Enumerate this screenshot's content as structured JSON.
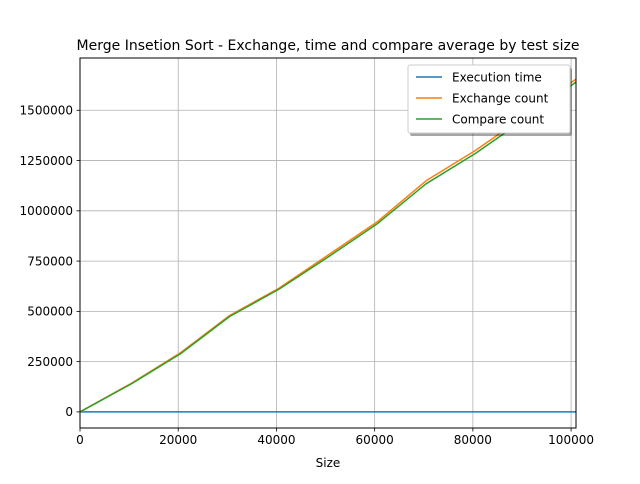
{
  "chart_data": {
    "type": "line",
    "title": "Merge Insetion Sort - Exchange, time and compare average by test size",
    "xlabel": "Size",
    "ylabel": "",
    "xlim": [
      0,
      101000
    ],
    "ylim": [
      -80000,
      1760000
    ],
    "xticks": [
      0,
      20000,
      40000,
      60000,
      80000,
      100000
    ],
    "yticks": [
      0,
      250000,
      500000,
      750000,
      1000000,
      1250000,
      1500000
    ],
    "xtick_labels": [
      "0",
      "20000",
      "40000",
      "60000",
      "80000",
      "100000"
    ],
    "ytick_labels": [
      "0",
      "250000",
      "500000",
      "750000",
      "1000000",
      "1250000",
      "1500000"
    ],
    "grid": true,
    "legend": "top-right",
    "x": [
      0,
      10500,
      20500,
      30500,
      40500,
      50500,
      60500,
      70500,
      80500,
      90500,
      101000
    ],
    "series": [
      {
        "name": "Execution time",
        "color": "#1f77b4",
        "values": [
          0,
          10,
          20,
          30,
          40,
          55,
          65,
          80,
          90,
          100,
          110
        ]
      },
      {
        "name": "Exchange count",
        "color": "#ff7f0e",
        "values": [
          0,
          143000,
          295000,
          480000,
          615000,
          780000,
          945000,
          1150000,
          1300000,
          1470000,
          1655000
        ]
      },
      {
        "name": "Compare count",
        "color": "#2ca02c",
        "values": [
          0,
          140000,
          290000,
          475000,
          610000,
          770000,
          935000,
          1135000,
          1285000,
          1455000,
          1640000
        ]
      }
    ]
  }
}
